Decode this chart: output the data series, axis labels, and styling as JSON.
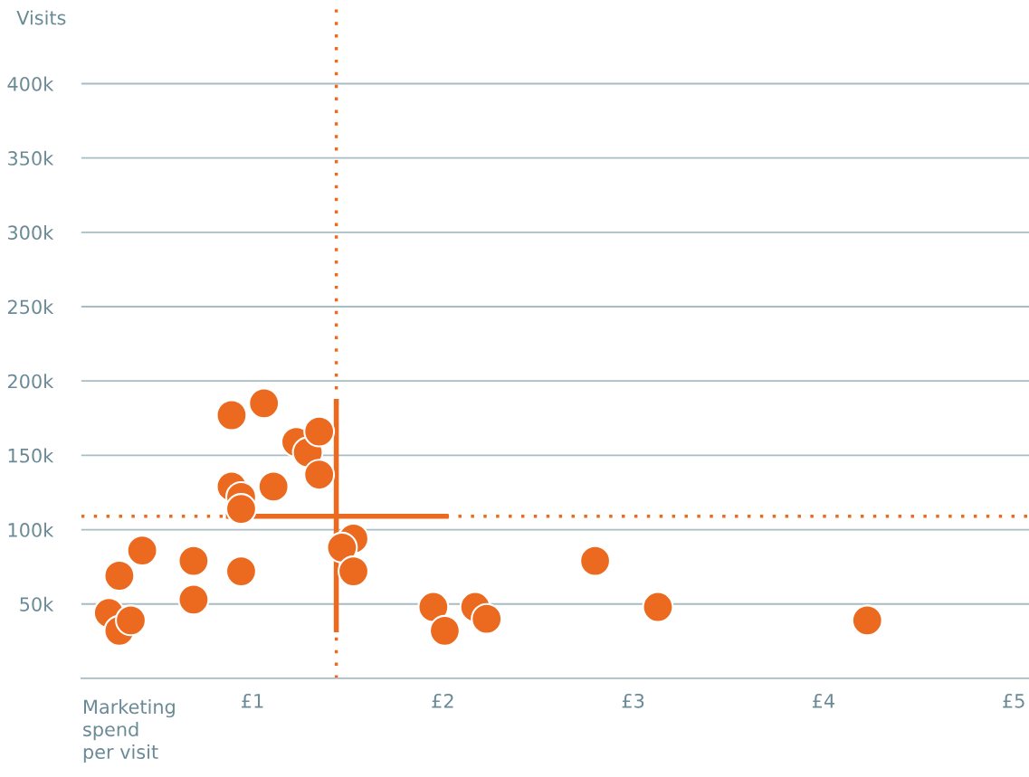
{
  "chart_data": {
    "type": "scatter",
    "xlabel": "Marketing\nspend\nper visit",
    "ylabel": "Visits",
    "xlim": [
      0.1,
      5.08
    ],
    "ylim": [
      0,
      450
    ],
    "xticks": [
      {
        "value": 1,
        "label": "£1"
      },
      {
        "value": 2,
        "label": "£2"
      },
      {
        "value": 3,
        "label": "£3"
      },
      {
        "value": 4,
        "label": "£4"
      },
      {
        "value": 5,
        "label": "£5"
      }
    ],
    "yticks": [
      {
        "value": 50,
        "label": "50k"
      },
      {
        "value": 100,
        "label": "100k"
      },
      {
        "value": 150,
        "label": "150k"
      },
      {
        "value": 200,
        "label": "200k"
      },
      {
        "value": 250,
        "label": "250k"
      },
      {
        "value": 300,
        "label": "300k"
      },
      {
        "value": 350,
        "label": "350k"
      },
      {
        "value": 400,
        "label": "400k"
      }
    ],
    "grid": "y",
    "marker": "circle",
    "series": [
      {
        "color": "#ec6a1f",
        "x": [
          0.245,
          0.3,
          0.36,
          0.3,
          0.42,
          0.69,
          0.69,
          0.94,
          0.89,
          1.06,
          0.89,
          0.94,
          0.94,
          1.11,
          1.23,
          1.29,
          1.35,
          1.35,
          1.53,
          1.47,
          1.53,
          1.95,
          2.01,
          2.17,
          2.23,
          2.8,
          3.13,
          4.23
        ],
        "values": [
          44,
          32,
          39,
          69,
          86,
          79,
          53,
          72,
          177,
          185,
          129,
          122,
          114,
          129,
          159,
          152,
          166,
          137,
          94,
          88,
          72,
          48,
          32,
          48,
          40,
          79,
          48,
          39
        ]
      },
      {
        "type": "line",
        "color": "#ec6a1f",
        "marker": "none",
        "line_style": "solid",
        "x": [
          0.86,
          2.03
        ],
        "values": [
          109,
          109
        ]
      },
      {
        "type": "line",
        "color": "#ec6a1f",
        "marker": "none",
        "line_style": "solid",
        "x": [
          1.44,
          1.44
        ],
        "values": [
          31,
          188
        ]
      }
    ],
    "ref_lines": [
      {
        "axis": "x",
        "value": 1.44,
        "color": "#ec6a1f",
        "line_style": "dotted"
      },
      {
        "axis": "y",
        "value": 109,
        "color": "#ec6a1f",
        "line_style": "dotted"
      }
    ]
  }
}
